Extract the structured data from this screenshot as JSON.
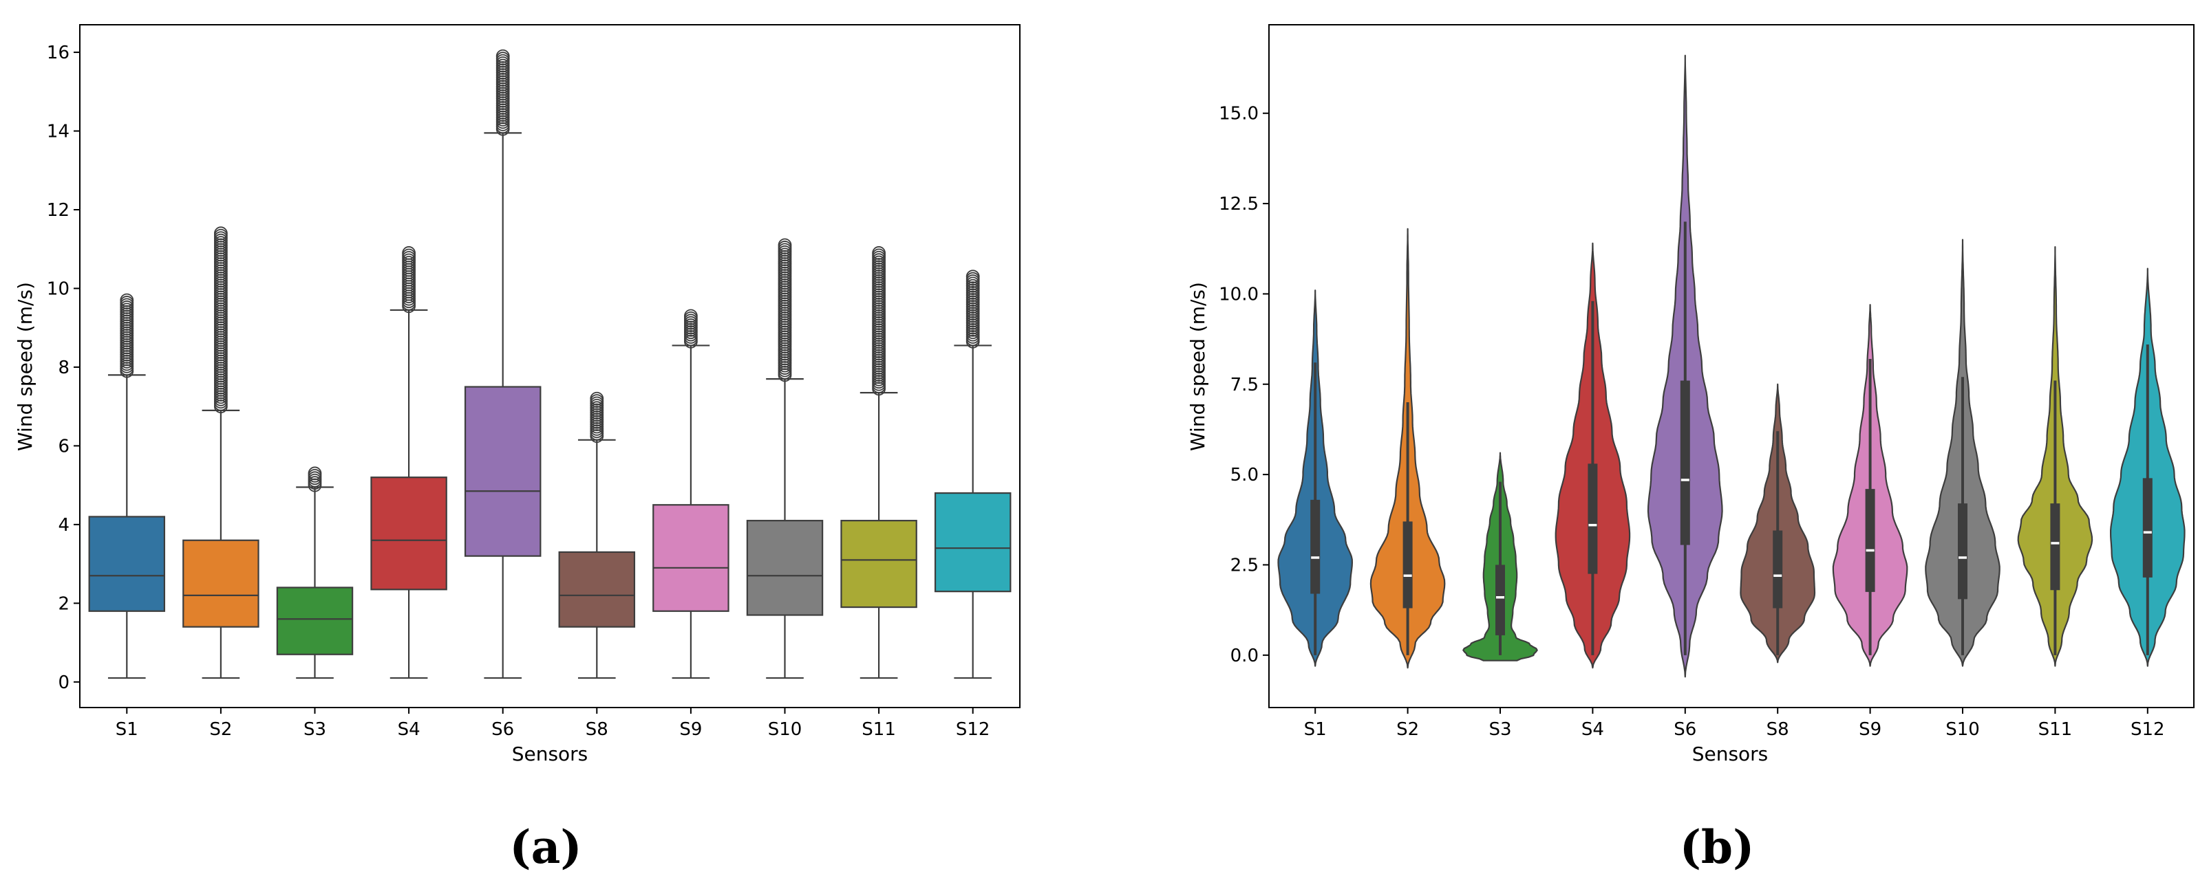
{
  "chart_data": [
    {
      "type": "box",
      "panel_label": "(a)",
      "title": "",
      "xlabel": "Sensors",
      "ylabel": "Wind speed  (m/s)",
      "ylim": [
        -0.65,
        16.7
      ],
      "yticks": [
        0,
        2,
        4,
        6,
        8,
        10,
        12,
        14,
        16
      ],
      "grid": false,
      "categories": [
        "S1",
        "S2",
        "S3",
        "S4",
        "S6",
        "S8",
        "S9",
        "S10",
        "S11",
        "S12"
      ],
      "colors": [
        "#3274a1",
        "#e1812c",
        "#3a923a",
        "#c03d3e",
        "#9372b2",
        "#845b53",
        "#d684bd",
        "#7f7f7f",
        "#a9aa35",
        "#2eabb8"
      ],
      "boxes": [
        {
          "min": 0.1,
          "q1": 1.8,
          "median": 2.7,
          "q3": 4.2,
          "whisker_high": 7.8,
          "outliers_from": 7.9,
          "outliers_to": 9.7
        },
        {
          "min": 0.1,
          "q1": 1.4,
          "median": 2.2,
          "q3": 3.6,
          "whisker_high": 6.9,
          "outliers_from": 7.0,
          "outliers_to": 11.4
        },
        {
          "min": 0.1,
          "q1": 0.7,
          "median": 1.6,
          "q3": 2.4,
          "whisker_high": 4.95,
          "outliers_from": 5.0,
          "outliers_to": 5.3
        },
        {
          "min": 0.1,
          "q1": 2.35,
          "median": 3.6,
          "q3": 5.2,
          "whisker_high": 9.45,
          "outliers_from": 9.55,
          "outliers_to": 10.9
        },
        {
          "min": 0.1,
          "q1": 3.2,
          "median": 4.85,
          "q3": 7.5,
          "whisker_high": 13.95,
          "outliers_from": 14.05,
          "outliers_to": 15.9
        },
        {
          "min": 0.1,
          "q1": 1.4,
          "median": 2.2,
          "q3": 3.3,
          "whisker_high": 6.15,
          "outliers_from": 6.25,
          "outliers_to": 7.2
        },
        {
          "min": 0.1,
          "q1": 1.8,
          "median": 2.9,
          "q3": 4.5,
          "whisker_high": 8.55,
          "outliers_from": 8.65,
          "outliers_to": 9.3
        },
        {
          "min": 0.1,
          "q1": 1.7,
          "median": 2.7,
          "q3": 4.1,
          "whisker_high": 7.7,
          "outliers_from": 7.8,
          "outliers_to": 11.1
        },
        {
          "min": 0.1,
          "q1": 1.9,
          "median": 3.1,
          "q3": 4.1,
          "whisker_high": 7.35,
          "outliers_from": 7.45,
          "outliers_to": 10.9
        },
        {
          "min": 0.1,
          "q1": 2.3,
          "median": 3.4,
          "q3": 4.8,
          "whisker_high": 8.55,
          "outliers_from": 8.65,
          "outliers_to": 10.3
        }
      ]
    },
    {
      "type": "violin",
      "panel_label": "(b)",
      "title": "",
      "xlabel": "Sensors",
      "ylabel": "Wind speed  (m/s)",
      "ylim": [
        -1.45,
        17.45
      ],
      "yticks": [
        0.0,
        2.5,
        5.0,
        7.5,
        10.0,
        12.5,
        15.0
      ],
      "ytick_labels": [
        "0.0",
        "2.5",
        "5.0",
        "7.5",
        "10.0",
        "12.5",
        "15.0"
      ],
      "grid": false,
      "categories": [
        "S1",
        "S2",
        "S3",
        "S4",
        "S6",
        "S8",
        "S9",
        "S10",
        "S11",
        "S12"
      ],
      "colors": [
        "#3274a1",
        "#e1812c",
        "#3a923a",
        "#c03d3e",
        "#9372b2",
        "#845b53",
        "#d684bd",
        "#7f7f7f",
        "#a9aa35",
        "#2eabb8"
      ],
      "violins": [
        {
          "min": -0.3,
          "max": 10.1,
          "q1": 1.7,
          "median": 2.7,
          "q3": 4.3,
          "whisker_low": 0.0,
          "whisker_high": 8.1,
          "profile": [
            [
              -0.3,
              0
            ],
            [
              0.3,
              0.18
            ],
            [
              1.0,
              0.62
            ],
            [
              2.0,
              0.95
            ],
            [
              2.6,
              1.0
            ],
            [
              3.2,
              0.82
            ],
            [
              4.0,
              0.52
            ],
            [
              5.0,
              0.33
            ],
            [
              6.0,
              0.22
            ],
            [
              7.0,
              0.14
            ],
            [
              8.0,
              0.08
            ],
            [
              9.0,
              0.04
            ],
            [
              10.1,
              0
            ]
          ]
        },
        {
          "min": -0.35,
          "max": 11.8,
          "q1": 1.3,
          "median": 2.2,
          "q3": 3.7,
          "whisker_low": 0.0,
          "whisker_high": 7.0,
          "profile": [
            [
              -0.35,
              0
            ],
            [
              0.3,
              0.2
            ],
            [
              0.9,
              0.62
            ],
            [
              1.5,
              0.95
            ],
            [
              2.0,
              1.0
            ],
            [
              2.6,
              0.85
            ],
            [
              3.5,
              0.52
            ],
            [
              4.5,
              0.32
            ],
            [
              5.5,
              0.2
            ],
            [
              6.5,
              0.13
            ],
            [
              7.5,
              0.08
            ],
            [
              9.0,
              0.04
            ],
            [
              10.5,
              0.02
            ],
            [
              11.8,
              0
            ]
          ]
        },
        {
          "min": -0.15,
          "max": 5.6,
          "q1": 0.55,
          "median": 1.6,
          "q3": 2.5,
          "whisker_low": 0.0,
          "whisker_high": 4.8,
          "profile": [
            [
              -0.15,
              0.45
            ],
            [
              0.0,
              0.9
            ],
            [
              0.15,
              1.0
            ],
            [
              0.3,
              0.8
            ],
            [
              0.5,
              0.42
            ],
            [
              0.8,
              0.3
            ],
            [
              1.2,
              0.34
            ],
            [
              1.7,
              0.42
            ],
            [
              2.2,
              0.45
            ],
            [
              2.7,
              0.42
            ],
            [
              3.2,
              0.36
            ],
            [
              3.7,
              0.28
            ],
            [
              4.2,
              0.18
            ],
            [
              4.8,
              0.08
            ],
            [
              5.6,
              0
            ]
          ]
        },
        {
          "min": -0.35,
          "max": 11.4,
          "q1": 2.25,
          "median": 3.6,
          "q3": 5.3,
          "whisker_low": 0.0,
          "whisker_high": 9.8,
          "profile": [
            [
              -0.35,
              0
            ],
            [
              0.2,
              0.22
            ],
            [
              0.9,
              0.5
            ],
            [
              1.6,
              0.72
            ],
            [
              2.5,
              0.92
            ],
            [
              3.3,
              1.0
            ],
            [
              4.2,
              0.92
            ],
            [
              5.2,
              0.74
            ],
            [
              6.2,
              0.52
            ],
            [
              7.2,
              0.36
            ],
            [
              8.2,
              0.24
            ],
            [
              9.2,
              0.14
            ],
            [
              10.3,
              0.06
            ],
            [
              11.4,
              0
            ]
          ]
        },
        {
          "min": -0.6,
          "max": 16.6,
          "q1": 3.05,
          "median": 4.85,
          "q3": 7.6,
          "whisker_low": 0.0,
          "whisker_high": 12.0,
          "profile": [
            [
              -0.6,
              0
            ],
            [
              0.3,
              0.12
            ],
            [
              1.2,
              0.3
            ],
            [
              2.2,
              0.6
            ],
            [
              3.2,
              0.9
            ],
            [
              4.0,
              1.0
            ],
            [
              5.0,
              0.92
            ],
            [
              6.0,
              0.78
            ],
            [
              7.0,
              0.6
            ],
            [
              8.0,
              0.45
            ],
            [
              9.0,
              0.34
            ],
            [
              10.0,
              0.26
            ],
            [
              11.0,
              0.19
            ],
            [
              12.0,
              0.13
            ],
            [
              13.0,
              0.08
            ],
            [
              14.0,
              0.05
            ],
            [
              15.0,
              0.03
            ],
            [
              16.6,
              0
            ]
          ]
        },
        {
          "min": -0.2,
          "max": 7.5,
          "q1": 1.3,
          "median": 2.2,
          "q3": 3.45,
          "whisker_low": 0.0,
          "whisker_high": 6.2,
          "profile": [
            [
              -0.2,
              0
            ],
            [
              0.4,
              0.3
            ],
            [
              1.0,
              0.72
            ],
            [
              1.7,
              1.0
            ],
            [
              2.3,
              0.98
            ],
            [
              3.0,
              0.82
            ],
            [
              3.8,
              0.55
            ],
            [
              4.5,
              0.36
            ],
            [
              5.2,
              0.22
            ],
            [
              6.0,
              0.12
            ],
            [
              6.8,
              0.05
            ],
            [
              7.5,
              0
            ]
          ]
        },
        {
          "min": -0.3,
          "max": 9.7,
          "q1": 1.75,
          "median": 2.9,
          "q3": 4.6,
          "whisker_low": 0.0,
          "whisker_high": 8.2,
          "profile": [
            [
              -0.3,
              0
            ],
            [
              0.3,
              0.22
            ],
            [
              1.0,
              0.62
            ],
            [
              1.8,
              0.95
            ],
            [
              2.4,
              1.0
            ],
            [
              3.0,
              0.88
            ],
            [
              4.0,
              0.6
            ],
            [
              5.0,
              0.42
            ],
            [
              6.0,
              0.28
            ],
            [
              7.0,
              0.17
            ],
            [
              8.0,
              0.08
            ],
            [
              9.0,
              0.03
            ],
            [
              9.7,
              0
            ]
          ]
        },
        {
          "min": -0.3,
          "max": 11.5,
          "q1": 1.55,
          "median": 2.7,
          "q3": 4.2,
          "whisker_low": 0.0,
          "whisker_high": 7.7,
          "profile": [
            [
              -0.3,
              0
            ],
            [
              0.4,
              0.3
            ],
            [
              1.0,
              0.65
            ],
            [
              1.8,
              0.95
            ],
            [
              2.4,
              1.0
            ],
            [
              3.1,
              0.88
            ],
            [
              4.2,
              0.62
            ],
            [
              5.2,
              0.42
            ],
            [
              6.2,
              0.28
            ],
            [
              7.2,
              0.17
            ],
            [
              8.2,
              0.09
            ],
            [
              9.5,
              0.04
            ],
            [
              11.5,
              0
            ]
          ]
        },
        {
          "min": -0.3,
          "max": 11.3,
          "q1": 1.8,
          "median": 3.1,
          "q3": 4.2,
          "whisker_low": 0.0,
          "whisker_high": 7.6,
          "profile": [
            [
              -0.3,
              0
            ],
            [
              0.4,
              0.18
            ],
            [
              1.2,
              0.38
            ],
            [
              2.0,
              0.6
            ],
            [
              2.6,
              0.85
            ],
            [
              3.2,
              1.0
            ],
            [
              3.7,
              0.92
            ],
            [
              4.3,
              0.62
            ],
            [
              5.0,
              0.36
            ],
            [
              6.0,
              0.22
            ],
            [
              7.0,
              0.14
            ],
            [
              8.0,
              0.08
            ],
            [
              9.5,
              0.03
            ],
            [
              11.3,
              0
            ]
          ]
        },
        {
          "min": -0.3,
          "max": 10.7,
          "q1": 2.15,
          "median": 3.4,
          "q3": 4.9,
          "whisker_low": 0.0,
          "whisker_high": 8.6,
          "profile": [
            [
              -0.3,
              0
            ],
            [
              0.4,
              0.2
            ],
            [
              1.2,
              0.48
            ],
            [
              2.0,
              0.78
            ],
            [
              2.8,
              0.97
            ],
            [
              3.4,
              1.0
            ],
            [
              4.1,
              0.92
            ],
            [
              5.0,
              0.72
            ],
            [
              6.0,
              0.5
            ],
            [
              7.0,
              0.34
            ],
            [
              8.0,
              0.2
            ],
            [
              9.0,
              0.09
            ],
            [
              10.7,
              0
            ]
          ]
        }
      ]
    }
  ]
}
